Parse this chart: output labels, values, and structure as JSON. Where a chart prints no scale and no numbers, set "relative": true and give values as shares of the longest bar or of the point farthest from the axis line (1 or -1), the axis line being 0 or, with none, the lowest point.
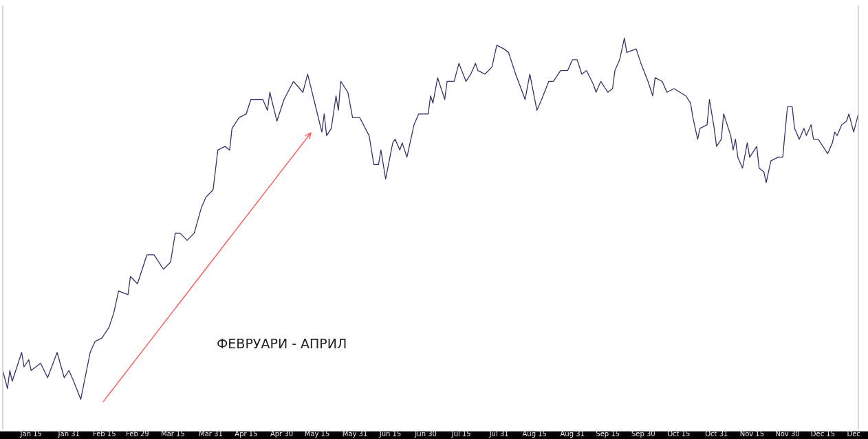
{
  "chart_data": {
    "type": "line",
    "relative": true,
    "grid": false,
    "legend": false,
    "tick_labels": "x",
    "marker": "none",
    "line_style": "solid",
    "annotations": [
      "ФЕВРУАРИ - АПРИЛ"
    ],
    "xlim": [
      "--01-03",
      "--12-30"
    ],
    "xticks": [
      {
        "value": "--01-15",
        "label": "Jan 15"
      },
      {
        "value": "--01-31",
        "label": "Jan 31"
      },
      {
        "value": "--02-15",
        "label": "Feb 15"
      },
      {
        "value": "--02-29",
        "label": "Feb 29"
      },
      {
        "value": "--03-15",
        "label": "Mar 15"
      },
      {
        "value": "--03-31",
        "label": "Mar 31"
      },
      {
        "value": "--04-15",
        "label": "Apr 15"
      },
      {
        "value": "--04-30",
        "label": "Apr 30"
      },
      {
        "value": "--05-15",
        "label": "May 15"
      },
      {
        "value": "--05-31",
        "label": "May 31"
      },
      {
        "value": "--06-15",
        "label": "Jun 15"
      },
      {
        "value": "--06-30",
        "label": "Jun 30"
      },
      {
        "value": "--07-15",
        "label": "Jul 15"
      },
      {
        "value": "--07-31",
        "label": "Jul 31"
      },
      {
        "value": "--08-15",
        "label": "Aug 15"
      },
      {
        "value": "--08-31",
        "label": "Aug 31"
      },
      {
        "value": "--09-15",
        "label": "Sep 15"
      },
      {
        "value": "--09-30",
        "label": "Sep 30"
      },
      {
        "value": "--10-15",
        "label": "Oct 15"
      },
      {
        "value": "--10-31",
        "label": "Oct 31"
      },
      {
        "value": "--11-15",
        "label": "Nov 15"
      },
      {
        "value": "--11-30",
        "label": "Nov 30"
      },
      {
        "value": "--12-15",
        "label": "Dec 15"
      },
      {
        "value": "--12-28",
        "label": "Dec"
      }
    ],
    "x": [
      "--01-03",
      "--01-05",
      "--01-06",
      "--01-07",
      "--01-11",
      "--01-12",
      "--01-14",
      "--01-15",
      "--01-19",
      "--01-22",
      "--01-26",
      "--01-29",
      "--01-31",
      "--02-02",
      "--02-05",
      "--02-09",
      "--02-11",
      "--02-14",
      "--02-17",
      "--02-19",
      "--02-21",
      "--02-25",
      "--02-26",
      "--02-29",
      "--03-04",
      "--03-07",
      "--03-11",
      "--03-14",
      "--03-16",
      "--03-18",
      "--03-21",
      "--03-24",
      "--03-27",
      "--03-29",
      "--04-01",
      "--04-03",
      "--04-06",
      "--04-08",
      "--04-09",
      "--04-12",
      "--04-15",
      "--04-17",
      "--04-20",
      "--04-22",
      "--04-24",
      "--04-25",
      "--04-28",
      "--05-01",
      "--05-05",
      "--05-09",
      "--05-11",
      "--05-14",
      "--05-17",
      "--05-18",
      "--05-19",
      "--05-21",
      "--05-23",
      "--05-24",
      "--05-25",
      "--05-28",
      "--05-30",
      "--06-02",
      "--06-06",
      "--06-08",
      "--06-10",
      "--06-11",
      "--06-13",
      "--06-16",
      "--06-17",
      "--06-19",
      "--06-20",
      "--06-22",
      "--06-25",
      "--06-27",
      "--07-01",
      "--07-02",
      "--07-03",
      "--07-05",
      "--07-08",
      "--07-09",
      "--07-12",
      "--07-14",
      "--07-17",
      "--07-19",
      "--07-21",
      "--07-22",
      "--07-25",
      "--07-28",
      "--07-30",
      "--08-02",
      "--08-04",
      "--08-07",
      "--08-11",
      "--08-13",
      "--08-16",
      "--08-18",
      "--08-21",
      "--08-23",
      "--08-26",
      "--08-29",
      "--08-31",
      "--09-02",
      "--09-04",
      "--09-06",
      "--09-09",
      "--09-10",
      "--09-12",
      "--09-15",
      "--09-17",
      "--09-18",
      "--09-20",
      "--09-22",
      "--09-23",
      "--09-27",
      "--09-29",
      "--10-02",
      "--10-04",
      "--10-05",
      "--10-08",
      "--10-10",
      "--10-13",
      "--10-18",
      "--10-20",
      "--10-21",
      "--10-23",
      "--10-24",
      "--10-27",
      "--10-28",
      "--10-30",
      "--10-31",
      "--11-02",
      "--11-03",
      "--11-06",
      "--11-07",
      "--11-08",
      "--11-09",
      "--11-11",
      "--11-13",
      "--11-14",
      "--11-17",
      "--11-18",
      "--11-20",
      "--11-21",
      "--11-23",
      "--11-26",
      "--11-28",
      "--11-30",
      "--12-02",
      "--12-03",
      "--12-05",
      "--12-07",
      "--12-08",
      "--12-10",
      "--12-11",
      "--12-13",
      "--12-15",
      "--12-17",
      "--12-19",
      "--12-20",
      "--12-21",
      "--12-23",
      "--12-25",
      "--12-26",
      "--12-28",
      "--12-30"
    ],
    "series": [
      {
        "color": "#34346b",
        "values": [
          0.08,
          0.03,
          0.08,
          0.05,
          0.13,
          0.09,
          0.11,
          0.08,
          0.1,
          0.06,
          0.13,
          0.06,
          0.08,
          0.05,
          0,
          0.13,
          0.16,
          0.17,
          0.2,
          0.24,
          0.3,
          0.29,
          0.34,
          0.32,
          0.4,
          0.4,
          0.36,
          0.38,
          0.46,
          0.46,
          0.44,
          0.46,
          0.53,
          0.56,
          0.58,
          0.69,
          0.7,
          0.69,
          0.75,
          0.78,
          0.79,
          0.83,
          0.83,
          0.83,
          0.8,
          0.85,
          0.77,
          0.83,
          0.88,
          0.85,
          0.9,
          0.82,
          0.74,
          0.79,
          0.73,
          0.75,
          0.84,
          0.8,
          0.88,
          0.85,
          0.78,
          0.78,
          0.73,
          0.65,
          0.65,
          0.69,
          0.61,
          0.71,
          0.72,
          0.69,
          0.71,
          0.67,
          0.76,
          0.79,
          0.79,
          0.84,
          0.82,
          0.89,
          0.83,
          0.88,
          0.88,
          0.93,
          0.88,
          0.9,
          0.93,
          0.91,
          0.9,
          0.92,
          0.98,
          0.97,
          0.96,
          0.9,
          0.83,
          0.9,
          0.8,
          0.83,
          0.88,
          0.88,
          0.91,
          0.91,
          0.94,
          0.94,
          0.9,
          0.91,
          0.87,
          0.85,
          0.88,
          0.85,
          0.86,
          0.91,
          0.94,
          1,
          0.96,
          0.97,
          0.93,
          0.88,
          0.84,
          0.89,
          0.88,
          0.85,
          0.86,
          0.84,
          0.82,
          0.78,
          0.72,
          0.75,
          0.76,
          0.83,
          0.75,
          0.7,
          0.72,
          0.79,
          0.73,
          0.69,
          0.72,
          0.67,
          0.64,
          0.71,
          0.67,
          0.7,
          0.64,
          0.63,
          0.6,
          0.66,
          0.67,
          0.67,
          0.81,
          0.81,
          0.75,
          0.72,
          0.75,
          0.73,
          0.76,
          0.72,
          0.72,
          0.7,
          0.68,
          0.71,
          0.74,
          0.73,
          0.76,
          0.77,
          0.79,
          0.74,
          0.79
        ]
      }
    ]
  }
}
